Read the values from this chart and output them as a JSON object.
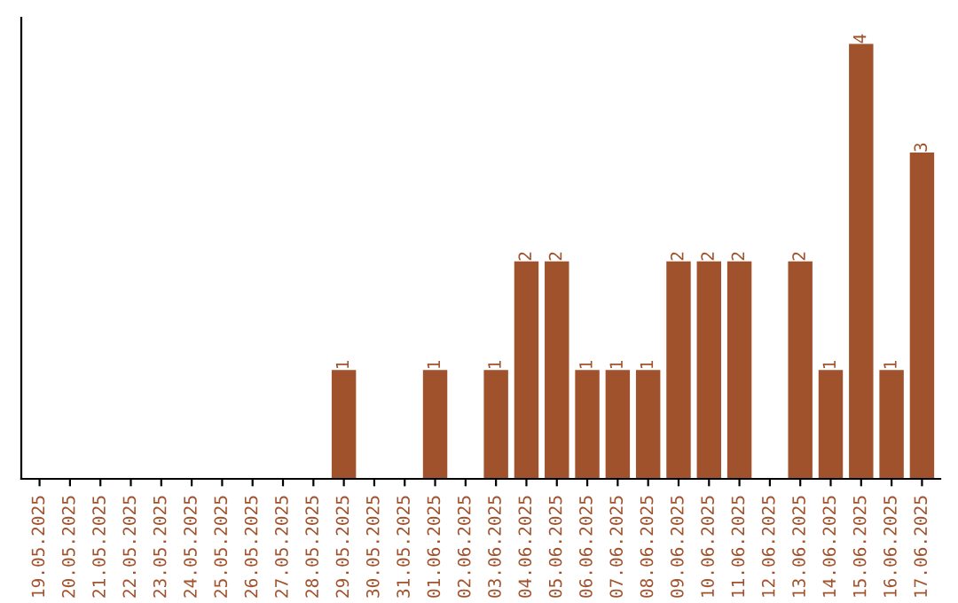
{
  "chart_data": {
    "type": "bar",
    "categories": [
      "19.05.2025",
      "20.05.2025",
      "21.05.2025",
      "22.05.2025",
      "23.05.2025",
      "24.05.2025",
      "25.05.2025",
      "26.05.2025",
      "27.05.2025",
      "28.05.2025",
      "29.05.2025",
      "30.05.2025",
      "31.05.2025",
      "01.06.2025",
      "02.06.2025",
      "03.06.2025",
      "04.06.2025",
      "05.06.2025",
      "06.06.2025",
      "07.06.2025",
      "08.06.2025",
      "09.06.2025",
      "10.06.2025",
      "11.06.2025",
      "12.06.2025",
      "13.06.2025",
      "14.06.2025",
      "15.06.2025",
      "16.06.2025",
      "17.06.2025"
    ],
    "values": [
      0,
      0,
      0,
      0,
      0,
      0,
      0,
      0,
      0,
      0,
      1,
      0,
      0,
      1,
      0,
      1,
      2,
      2,
      1,
      1,
      1,
      2,
      2,
      2,
      0,
      2,
      1,
      4,
      1,
      3
    ],
    "value_labels": [
      null,
      null,
      null,
      null,
      null,
      null,
      null,
      null,
      null,
      null,
      "1",
      null,
      null,
      "1",
      null,
      "1",
      "2",
      "2",
      "1",
      "1",
      "1",
      "2",
      "2",
      "2",
      null,
      "2",
      "1",
      "4",
      "1",
      "3"
    ],
    "color": "#a0522d",
    "grid": false,
    "legend": false
  }
}
